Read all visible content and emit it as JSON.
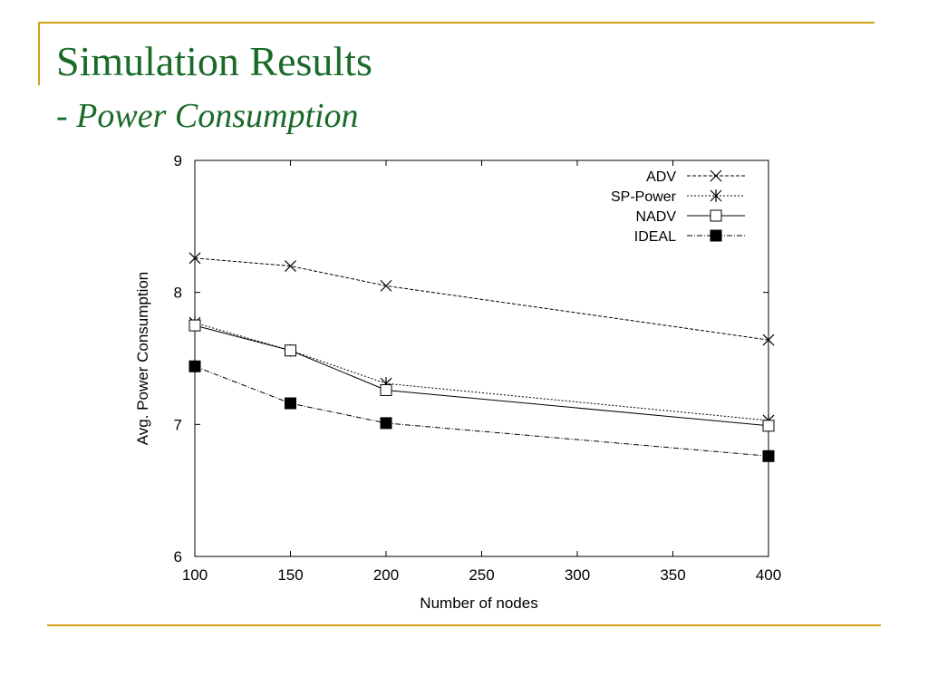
{
  "slide": {
    "title": "Simulation Results",
    "subtitle_dash": "- ",
    "subtitle": "Power Consumption",
    "accent_color": "#d4a017",
    "title_color": "#1a6a2a"
  },
  "chart_data": {
    "type": "line",
    "title": "",
    "xlabel": "Number of nodes",
    "ylabel": "Avg. Power Consumption",
    "xlim": [
      100,
      400
    ],
    "ylim": [
      6,
      9
    ],
    "xticks": [
      100,
      150,
      200,
      250,
      300,
      350,
      400
    ],
    "yticks": [
      6,
      7,
      8,
      9
    ],
    "grid": false,
    "legend_position": "top-right",
    "x": [
      100,
      150,
      200,
      400
    ],
    "series": [
      {
        "name": "ADV",
        "marker": "x",
        "dash": "4,2",
        "values": [
          8.26,
          8.2,
          8.05,
          7.64
        ]
      },
      {
        "name": "SP-Power",
        "marker": "asterisk",
        "dash": "2,2",
        "values": [
          7.77,
          7.56,
          7.31,
          7.03
        ]
      },
      {
        "name": "NADV",
        "marker": "open-square",
        "dash": "",
        "values": [
          7.75,
          7.56,
          7.26,
          6.99
        ]
      },
      {
        "name": "IDEAL",
        "marker": "filled-square",
        "dash": "6,2,1,2",
        "values": [
          7.44,
          7.16,
          7.01,
          6.76
        ]
      }
    ]
  }
}
